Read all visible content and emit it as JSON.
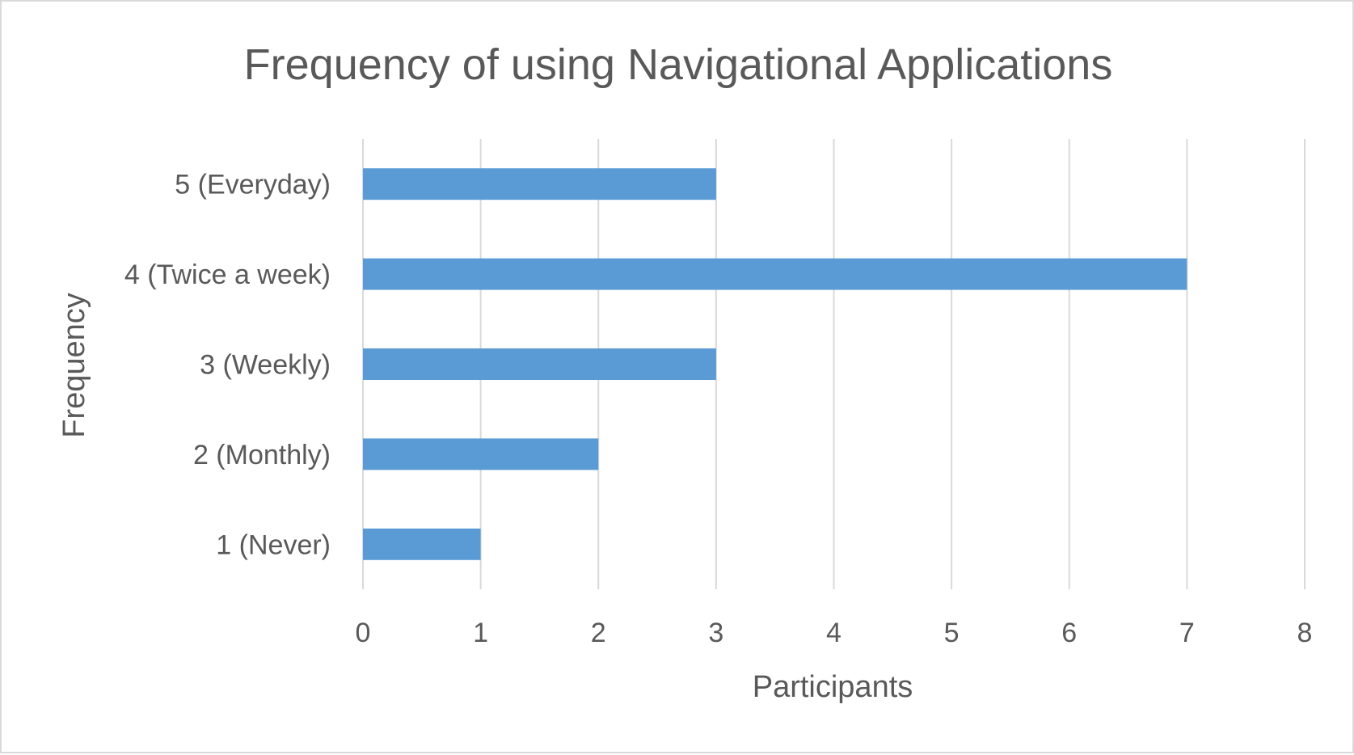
{
  "chart_data": {
    "type": "bar",
    "orientation": "horizontal",
    "title": "Frequency of using Navigational Applications",
    "xlabel": "Participants",
    "ylabel": "Frequency",
    "categories": [
      "5 (Everyday)",
      "4 (Twice a week)",
      "3 (Weekly)",
      "2 (Monthly)",
      "1 (Never)"
    ],
    "values": [
      3,
      7,
      3,
      2,
      1
    ],
    "xlim": [
      0,
      8
    ],
    "xticks": [
      "0",
      "1",
      "2",
      "3",
      "4",
      "5",
      "6",
      "7",
      "8"
    ],
    "grid": true,
    "legend": "none",
    "bar_color": "#5b9bd5"
  }
}
